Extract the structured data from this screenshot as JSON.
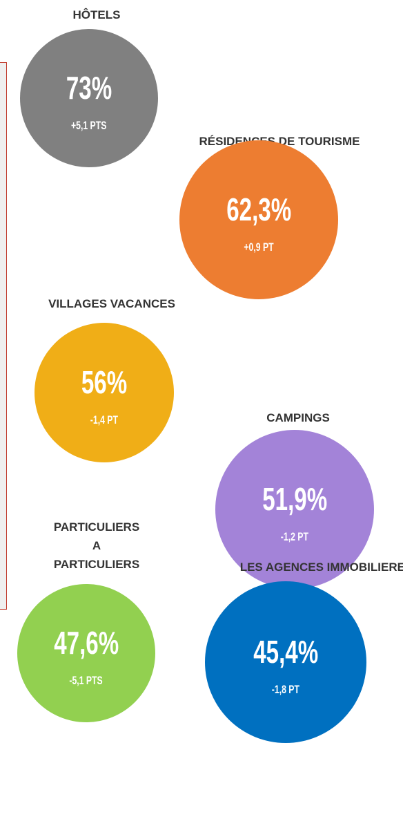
{
  "items": [
    {
      "label": [
        "HÔTELS"
      ],
      "value": "73%",
      "change": "+5,1 PTS",
      "color": "#808080"
    },
    {
      "label": [
        "RÉSIDENCES DE TOURISME"
      ],
      "value": "62,3%",
      "change": "+0,9 PT",
      "color": "#ed7d31"
    },
    {
      "label": [
        "VILLAGES VACANCES"
      ],
      "value": "56%",
      "change": "-1,4 PT",
      "color": "#f0ae17"
    },
    {
      "label": [
        "CAMPINGS"
      ],
      "value": "51,9%",
      "change": "-1,2 PT",
      "color": "#a383d8"
    },
    {
      "label": [
        "PARTICULIERS",
        "A",
        "PARTICULIERS"
      ],
      "value": "47,6%",
      "change": "-5,1 PTS",
      "color": "#92d050"
    },
    {
      "label": [
        "LES AGENCES IMMOBILIERES"
      ],
      "value": "45,4%",
      "change": "-1,8 PT",
      "color": "#0070c0"
    }
  ]
}
